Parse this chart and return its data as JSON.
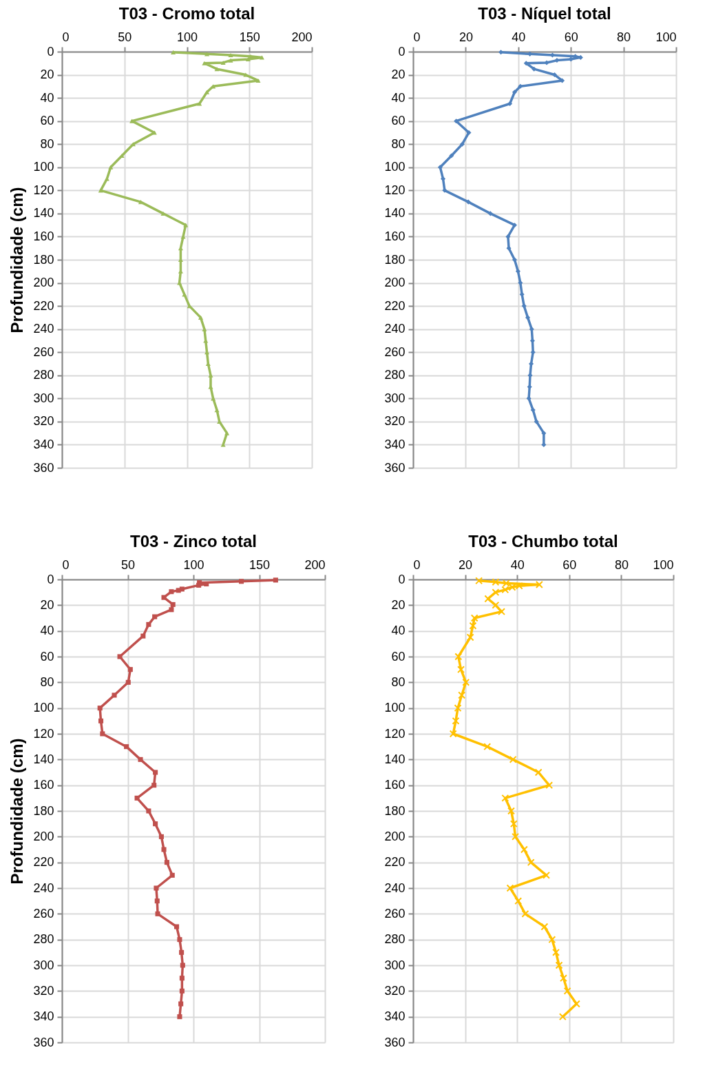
{
  "chart_data": [
    {
      "type": "line",
      "title": "T03 - Cromo total",
      "ylabel": "Profundidade (cm)",
      "xlim": [
        0,
        200
      ],
      "xticks": [
        0,
        50,
        100,
        150,
        200
      ],
      "ylim": [
        360,
        0
      ],
      "yticks": [
        0,
        20,
        40,
        60,
        80,
        100,
        120,
        140,
        160,
        180,
        200,
        220,
        240,
        260,
        280,
        300,
        320,
        340,
        360
      ],
      "grid": true,
      "marker": "triangle",
      "series": [
        {
          "color": "#9bbb59",
          "x": [
            89,
            116,
            135,
            151,
            160,
            149,
            135,
            129,
            114,
            124,
            147,
            157,
            121,
            116,
            110,
            56,
            74,
            57,
            48,
            39,
            36,
            31,
            63,
            81,
            99,
            97,
            95,
            95,
            95,
            94,
            98,
            102,
            111,
            114,
            115,
            116,
            117,
            119,
            119,
            121,
            124,
            126,
            132,
            129
          ],
          "values": [
            0.5,
            2,
            3,
            4,
            5,
            6.5,
            7.5,
            9.5,
            10,
            15,
            20,
            25,
            30,
            35,
            45,
            60,
            70,
            80,
            90,
            100,
            110,
            120,
            130,
            140,
            150,
            160,
            170,
            180,
            190,
            200,
            210,
            220,
            230,
            240,
            250,
            260,
            270,
            280,
            290,
            300,
            310,
            320,
            330,
            340
          ]
        }
      ]
    },
    {
      "type": "line",
      "title": "T03 - Níquel total",
      "xlim": [
        0,
        100
      ],
      "xticks": [
        0,
        20,
        40,
        60,
        80,
        100
      ],
      "ylim": [
        360,
        0
      ],
      "yticks": [
        0,
        20,
        40,
        60,
        80,
        100,
        120,
        140,
        160,
        180,
        200,
        220,
        240,
        260,
        280,
        300,
        320,
        340,
        360
      ],
      "grid": true,
      "marker": "diamond",
      "series": [
        {
          "color": "#4f81bd",
          "x": [
            33.4,
            44.4,
            53,
            61.7,
            63.7,
            60,
            54.7,
            50.8,
            43,
            46,
            53.8,
            56.7,
            40.8,
            38.6,
            36.8,
            16.4,
            21.2,
            18.7,
            14.6,
            10.3,
            11.4,
            12,
            21,
            29.4,
            38.6,
            36.1,
            36.4,
            38.6,
            39.9,
            40.8,
            41.4,
            42.2,
            43.6,
            45.1,
            45.4,
            45.6,
            44.9,
            44.5,
            44.3,
            44,
            45.6,
            46.9,
            49.7,
            49.7
          ],
          "values": [
            0.5,
            2,
            3,
            4,
            5,
            6.5,
            7.5,
            9.5,
            10,
            15,
            20,
            25,
            30,
            35,
            45,
            60,
            70,
            80,
            90,
            100,
            110,
            120,
            130,
            140,
            150,
            160,
            170,
            180,
            190,
            200,
            210,
            220,
            230,
            240,
            250,
            260,
            270,
            280,
            290,
            300,
            310,
            320,
            330,
            340
          ]
        }
      ]
    },
    {
      "type": "line",
      "title": "T03 - Zinco total",
      "ylabel": "Profundidade (cm)",
      "xlim": [
        0,
        200
      ],
      "xticks": [
        0,
        50,
        100,
        150,
        200
      ],
      "ylim": [
        360,
        0
      ],
      "yticks": [
        0,
        20,
        40,
        60,
        80,
        100,
        120,
        140,
        160,
        180,
        200,
        220,
        240,
        260,
        280,
        300,
        320,
        340,
        360
      ],
      "grid": true,
      "marker": "square",
      "series": [
        {
          "color": "#c0504d",
          "x": [
            162.5,
            136.4,
            104.5,
            109.8,
            104,
            91.3,
            88.6,
            83.2,
            77.5,
            84.4,
            83.2,
            70.5,
            65.9,
            61.7,
            44,
            52,
            50.4,
            39.8,
            28.9,
            29.6,
            30.8,
            49,
            59.7,
            71,
            70,
            57.1,
            65.9,
            71,
            75.6,
            77.5,
            79.8,
            83.9,
            71.7,
            72.4,
            72.8,
            87.2,
            89.5,
            90.9,
            91.8,
            91.3,
            91.3,
            90.4,
            89.5
          ],
          "values": [
            0.5,
            1.5,
            2.5,
            3.5,
            4.5,
            7.5,
            8.5,
            9.5,
            14,
            19.5,
            23.5,
            29,
            35,
            44,
            60,
            70,
            80,
            90,
            100,
            110,
            120,
            130,
            140,
            150,
            160,
            170,
            180,
            190,
            200,
            210,
            220,
            230,
            240,
            250,
            260,
            270,
            280,
            290,
            300,
            310,
            320,
            330,
            340
          ]
        }
      ]
    },
    {
      "type": "line",
      "title": "T03 - Chumbo total",
      "xlim": [
        0,
        100
      ],
      "xticks": [
        0,
        20,
        40,
        60,
        80,
        100
      ],
      "ylim": [
        360,
        0
      ],
      "yticks": [
        0,
        20,
        40,
        60,
        80,
        100,
        120,
        140,
        160,
        180,
        200,
        220,
        240,
        260,
        280,
        300,
        320,
        340,
        360
      ],
      "grid": true,
      "marker": "cross",
      "series": [
        {
          "color": "#ffc000",
          "x": [
            25.3,
            31.7,
            35.8,
            48.5,
            40.8,
            38.1,
            35.4,
            31.7,
            28.8,
            31.7,
            34,
            23.6,
            23,
            22,
            17.4,
            18.4,
            20.3,
            18.7,
            17.2,
            16.4,
            15.4,
            28.5,
            38.4,
            48.2,
            52.3,
            35.4,
            37.7,
            38.7,
            39.3,
            42.7,
            45.3,
            51.2,
            37.3,
            40.4,
            43.1,
            50.5,
            53.4,
            54.9,
            56.1,
            57.8,
            59.3,
            62.8,
            57.5
          ],
          "values": [
            1,
            2,
            3,
            4,
            5,
            6,
            8,
            10,
            15,
            20,
            25,
            30,
            36,
            45,
            60,
            70,
            80,
            90,
            100,
            110,
            120,
            130,
            140,
            150,
            160,
            170,
            180,
            190,
            200,
            210,
            220,
            230,
            240,
            250,
            260,
            270,
            280,
            290,
            300,
            310,
            320,
            330,
            340
          ]
        }
      ]
    }
  ]
}
